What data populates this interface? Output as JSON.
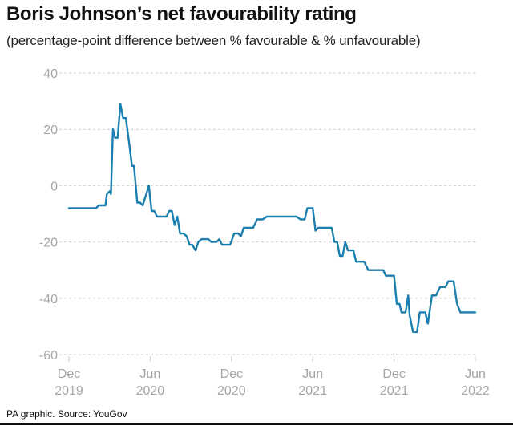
{
  "chart_data": {
    "type": "line",
    "title": "Boris Johnson’s net favourability rating",
    "subtitle": "(percentage-point difference between % favourable & % unfavourable)",
    "xlabel": "",
    "ylabel": "",
    "ylim": [
      -60,
      40
    ],
    "yticks": [
      40,
      20,
      0,
      -20,
      -40,
      -60
    ],
    "xlim": [
      0,
      30
    ],
    "xticks": [
      {
        "x": 0,
        "line1": "Dec",
        "line2": "2019"
      },
      {
        "x": 6,
        "line1": "Jun",
        "line2": "2020"
      },
      {
        "x": 12,
        "line1": "Dec",
        "line2": "2020"
      },
      {
        "x": 18,
        "line1": "Jun",
        "line2": "2021"
      },
      {
        "x": 24,
        "line1": "Dec",
        "line2": "2021"
      },
      {
        "x": 30,
        "line1": "Jun",
        "line2": "2022"
      }
    ],
    "x_unit": "months since Dec 2019",
    "series": [
      {
        "name": "Net favourability",
        "color": "#1a7fae",
        "points": [
          [
            0,
            -8
          ],
          [
            2.0,
            -8
          ],
          [
            2.2,
            -7
          ],
          [
            2.7,
            -7
          ],
          [
            2.8,
            -3
          ],
          [
            3.0,
            -2
          ],
          [
            3.1,
            -3
          ],
          [
            3.25,
            20
          ],
          [
            3.4,
            17
          ],
          [
            3.6,
            17
          ],
          [
            3.8,
            29
          ],
          [
            4.0,
            24
          ],
          [
            4.2,
            24
          ],
          [
            4.45,
            15
          ],
          [
            4.65,
            7
          ],
          [
            4.8,
            7
          ],
          [
            5.05,
            -6
          ],
          [
            5.25,
            -6
          ],
          [
            5.45,
            -7
          ],
          [
            5.9,
            0
          ],
          [
            6.1,
            -9
          ],
          [
            6.3,
            -9
          ],
          [
            6.5,
            -11
          ],
          [
            7.2,
            -11
          ],
          [
            7.4,
            -9
          ],
          [
            7.6,
            -9
          ],
          [
            7.8,
            -14
          ],
          [
            8.0,
            -11
          ],
          [
            8.2,
            -17
          ],
          [
            8.45,
            -17
          ],
          [
            8.7,
            -18
          ],
          [
            8.9,
            -21
          ],
          [
            9.1,
            -21
          ],
          [
            9.35,
            -23
          ],
          [
            9.55,
            -20
          ],
          [
            9.8,
            -19
          ],
          [
            10.3,
            -19
          ],
          [
            10.5,
            -20
          ],
          [
            10.9,
            -20
          ],
          [
            11.1,
            -19
          ],
          [
            11.3,
            -21
          ],
          [
            11.9,
            -21
          ],
          [
            12.2,
            -17
          ],
          [
            12.5,
            -17
          ],
          [
            12.7,
            -18
          ],
          [
            12.9,
            -15
          ],
          [
            13.6,
            -15
          ],
          [
            13.9,
            -12
          ],
          [
            14.3,
            -12
          ],
          [
            14.6,
            -11
          ],
          [
            16.8,
            -11
          ],
          [
            17.1,
            -12
          ],
          [
            17.4,
            -12
          ],
          [
            17.6,
            -8
          ],
          [
            18.0,
            -8
          ],
          [
            18.2,
            -16
          ],
          [
            18.4,
            -15
          ],
          [
            19.4,
            -15
          ],
          [
            19.6,
            -20
          ],
          [
            19.8,
            -20
          ],
          [
            20.0,
            -25
          ],
          [
            20.2,
            -25
          ],
          [
            20.4,
            -20
          ],
          [
            20.6,
            -23
          ],
          [
            21.0,
            -23
          ],
          [
            21.2,
            -27
          ],
          [
            21.8,
            -27
          ],
          [
            22.1,
            -30
          ],
          [
            23.2,
            -30
          ],
          [
            23.4,
            -32
          ],
          [
            24.0,
            -32
          ],
          [
            24.2,
            -42
          ],
          [
            24.4,
            -42
          ],
          [
            24.55,
            -45
          ],
          [
            24.85,
            -45
          ],
          [
            25.05,
            -39
          ],
          [
            25.15,
            -46
          ],
          [
            25.4,
            -52
          ],
          [
            25.7,
            -52
          ],
          [
            25.9,
            -45
          ],
          [
            26.3,
            -45
          ],
          [
            26.5,
            -49
          ],
          [
            26.8,
            -39
          ],
          [
            27.1,
            -39
          ],
          [
            27.4,
            -36
          ],
          [
            27.8,
            -36
          ],
          [
            28.0,
            -34
          ],
          [
            28.4,
            -34
          ],
          [
            28.65,
            -42
          ],
          [
            28.9,
            -45
          ],
          [
            30.0,
            -45
          ]
        ]
      }
    ],
    "gridlines": true
  },
  "footer": {
    "source": "PA graphic. Source: YouGov"
  },
  "colors": {
    "line": "#1a7fae",
    "grid": "#cfcfcf",
    "tick_label": "#a6a6a6"
  }
}
